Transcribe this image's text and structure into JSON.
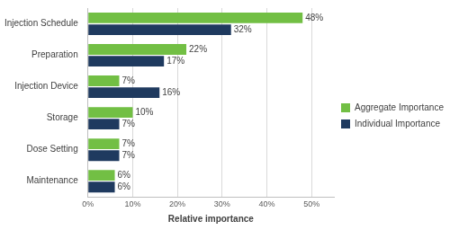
{
  "chart_data": {
    "type": "bar",
    "orientation": "horizontal",
    "categories": [
      "Injection Schedule",
      "Preparation",
      "Injection Device",
      "Storage",
      "Dose Setting",
      "Maintenance"
    ],
    "series": [
      {
        "name": "Aggregate Importance",
        "color": "#72bf44",
        "values": [
          48,
          22,
          7,
          10,
          7,
          6
        ],
        "value_labels": [
          "48%",
          "22%",
          "7%",
          "10%",
          "7%",
          "6%"
        ]
      },
      {
        "name": "Individual Importance",
        "color": "#1f3a5f",
        "values": [
          32,
          17,
          16,
          7,
          7,
          6
        ],
        "value_labels": [
          "32%",
          "17%",
          "16%",
          "7%",
          "7%",
          "6%"
        ]
      }
    ],
    "x_label": "Relative importance",
    "xlim": [
      0,
      55
    ],
    "xticks": [
      {
        "value": 0,
        "label": "0%"
      },
      {
        "value": 10,
        "label": "10%"
      },
      {
        "value": 20,
        "label": "20%"
      },
      {
        "value": 30,
        "label": "30%"
      },
      {
        "value": 40,
        "label": "40%"
      },
      {
        "value": 50,
        "label": "50%"
      }
    ],
    "grid": true,
    "legend": "right",
    "data_labels": true
  }
}
